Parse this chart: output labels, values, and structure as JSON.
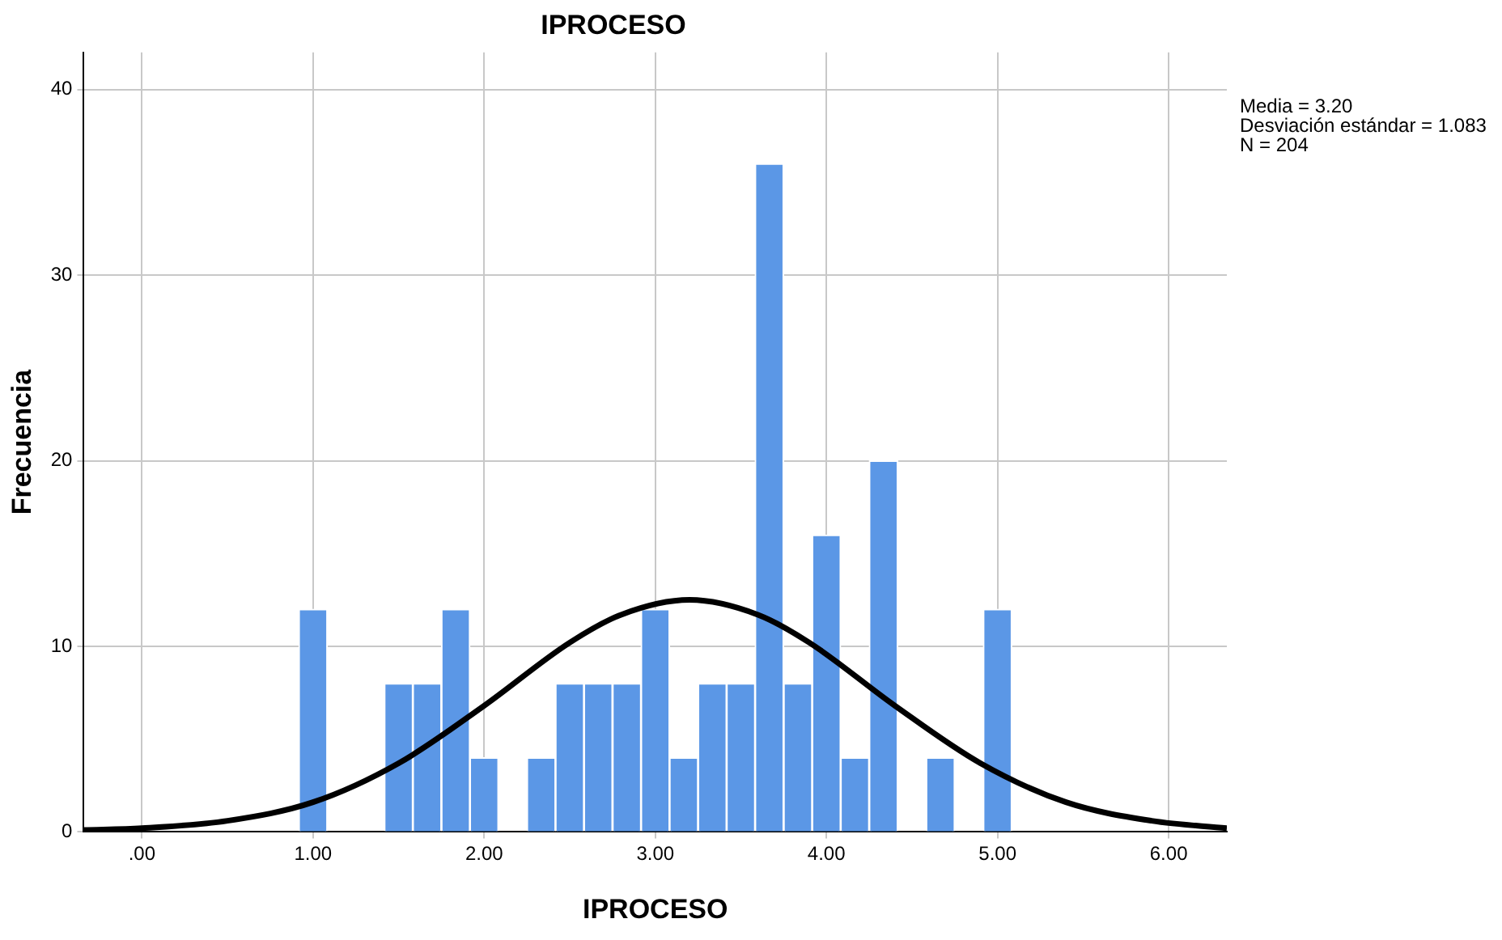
{
  "chart_data": {
    "type": "histogram",
    "title": "IPROCESO",
    "xlabel": "IPROCESO",
    "ylabel": "Frecuencia",
    "bins": [
      0.917,
      1.083,
      1.25,
      1.417,
      1.583,
      1.75,
      1.917,
      2.083,
      2.25,
      2.417,
      2.583,
      2.75,
      2.917,
      3.083,
      3.25,
      3.417,
      3.583,
      3.75,
      3.917,
      4.083,
      4.25,
      4.417,
      4.583,
      4.75,
      4.917,
      5.083
    ],
    "values": [
      12,
      0,
      0,
      8,
      8,
      12,
      4,
      0,
      4,
      8,
      8,
      8,
      12,
      4,
      8,
      8,
      36,
      8,
      16,
      4,
      20,
      0,
      4,
      0,
      12
    ],
    "color": "#5b97e6",
    "series": [
      {
        "type": "line",
        "color": "#000000",
        "x": [
          -0.34,
          0,
          0.5,
          1,
          1.5,
          2,
          2.5,
          2.8,
          3.2,
          3.6,
          3.9,
          4.4,
          4.9,
          5.4,
          5.9,
          6.34
        ],
        "values": [
          0.1,
          0.2,
          0.6,
          1.6,
          3.7,
          6.8,
          10.2,
          11.7,
          12.5,
          11.7,
          10.2,
          6.8,
          3.7,
          1.6,
          0.6,
          0.2
        ]
      }
    ],
    "xlim": [
      -0.34,
      6.34
    ],
    "ylim": [
      0,
      42
    ],
    "xticks": [
      {
        "value": 0,
        "label": ".00"
      },
      {
        "value": 1,
        "label": "1.00"
      },
      {
        "value": 2,
        "label": "2.00"
      },
      {
        "value": 3,
        "label": "3.00"
      },
      {
        "value": 4,
        "label": "4.00"
      },
      {
        "value": 5,
        "label": "5.00"
      },
      {
        "value": 6,
        "label": "6.00"
      }
    ],
    "yticks": [
      0,
      10,
      20,
      30,
      40
    ],
    "grid": true,
    "legend": false,
    "marker": "none",
    "line_style": "solid",
    "annotations": [
      "Media = 3.20",
      "Desviación estándar = 1.083",
      "N = 204"
    ]
  }
}
